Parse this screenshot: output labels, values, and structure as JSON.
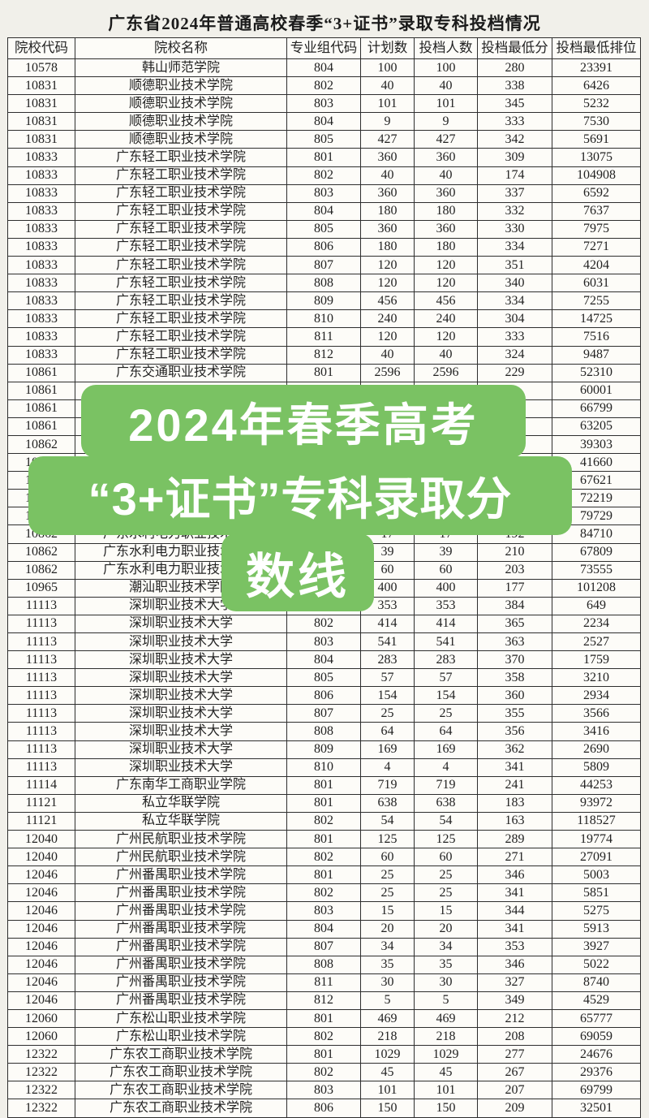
{
  "page": {
    "title": "广东省2024年普通高校春季“3+证书”录取专科投档情况"
  },
  "table": {
    "headers": [
      "院校代码",
      "院校名称",
      "专业组代码",
      "计划数",
      "投档人数",
      "投档最低分",
      "投档最低排位"
    ],
    "rows": [
      [
        "10578",
        "韩山师范学院",
        "804",
        "100",
        "100",
        "280",
        "23391"
      ],
      [
        "10831",
        "顺德职业技术学院",
        "802",
        "40",
        "40",
        "338",
        "6426"
      ],
      [
        "10831",
        "顺德职业技术学院",
        "803",
        "101",
        "101",
        "345",
        "5232"
      ],
      [
        "10831",
        "顺德职业技术学院",
        "804",
        "9",
        "9",
        "333",
        "7530"
      ],
      [
        "10831",
        "顺德职业技术学院",
        "805",
        "427",
        "427",
        "342",
        "5691"
      ],
      [
        "10833",
        "广东轻工职业技术学院",
        "801",
        "360",
        "360",
        "309",
        "13075"
      ],
      [
        "10833",
        "广东轻工职业技术学院",
        "802",
        "40",
        "40",
        "174",
        "104908"
      ],
      [
        "10833",
        "广东轻工职业技术学院",
        "803",
        "360",
        "360",
        "337",
        "6592"
      ],
      [
        "10833",
        "广东轻工职业技术学院",
        "804",
        "180",
        "180",
        "332",
        "7637"
      ],
      [
        "10833",
        "广东轻工职业技术学院",
        "805",
        "360",
        "360",
        "330",
        "7975"
      ],
      [
        "10833",
        "广东轻工职业技术学院",
        "806",
        "180",
        "180",
        "334",
        "7271"
      ],
      [
        "10833",
        "广东轻工职业技术学院",
        "807",
        "120",
        "120",
        "351",
        "4204"
      ],
      [
        "10833",
        "广东轻工职业技术学院",
        "808",
        "120",
        "120",
        "340",
        "6031"
      ],
      [
        "10833",
        "广东轻工职业技术学院",
        "809",
        "456",
        "456",
        "334",
        "7255"
      ],
      [
        "10833",
        "广东轻工职业技术学院",
        "810",
        "240",
        "240",
        "304",
        "14725"
      ],
      [
        "10833",
        "广东轻工职业技术学院",
        "811",
        "120",
        "120",
        "333",
        "7516"
      ],
      [
        "10833",
        "广东轻工职业技术学院",
        "812",
        "40",
        "40",
        "324",
        "9487"
      ],
      [
        "10861",
        "广东交通职业技术学院",
        "801",
        "2596",
        "2596",
        "229",
        "52310"
      ],
      [
        "10861",
        "",
        "",
        "",
        "",
        "",
        "60001"
      ],
      [
        "10861",
        "",
        "",
        "",
        "",
        "",
        "66799"
      ],
      [
        "10861",
        "",
        "",
        "",
        "",
        "",
        "63205"
      ],
      [
        "10862",
        "",
        "",
        "",
        "",
        "",
        "39303"
      ],
      [
        "10862",
        "",
        "",
        "",
        "",
        "",
        "41660"
      ],
      [
        "10862",
        "",
        "",
        "",
        "",
        "",
        "67621"
      ],
      [
        "10862",
        "",
        "",
        "",
        "",
        "",
        "72219"
      ],
      [
        "10862",
        "",
        "",
        "",
        "",
        "",
        "79729"
      ],
      [
        "10862",
        "广东水利电力职业技术学院",
        "",
        "17",
        "17",
        "192",
        "84710"
      ],
      [
        "10862",
        "广东水利电力职业技术学院",
        "",
        "39",
        "39",
        "210",
        "67809"
      ],
      [
        "10862",
        "广东水利电力职业技术学院",
        "",
        "60",
        "60",
        "203",
        "73555"
      ],
      [
        "10965",
        "潮汕职业技术学院",
        "",
        "400",
        "400",
        "177",
        "101208"
      ],
      [
        "11113",
        "深圳职业技术大学",
        "",
        "353",
        "353",
        "384",
        "649"
      ],
      [
        "11113",
        "深圳职业技术大学",
        "802",
        "414",
        "414",
        "365",
        "2234"
      ],
      [
        "11113",
        "深圳职业技术大学",
        "803",
        "541",
        "541",
        "363",
        "2527"
      ],
      [
        "11113",
        "深圳职业技术大学",
        "804",
        "283",
        "283",
        "370",
        "1759"
      ],
      [
        "11113",
        "深圳职业技术大学",
        "805",
        "57",
        "57",
        "358",
        "3210"
      ],
      [
        "11113",
        "深圳职业技术大学",
        "806",
        "154",
        "154",
        "360",
        "2934"
      ],
      [
        "11113",
        "深圳职业技术大学",
        "807",
        "25",
        "25",
        "355",
        "3566"
      ],
      [
        "11113",
        "深圳职业技术大学",
        "808",
        "64",
        "64",
        "356",
        "3416"
      ],
      [
        "11113",
        "深圳职业技术大学",
        "809",
        "169",
        "169",
        "362",
        "2690"
      ],
      [
        "11113",
        "深圳职业技术大学",
        "810",
        "4",
        "4",
        "341",
        "5809"
      ],
      [
        "11114",
        "广东南华工商职业学院",
        "801",
        "719",
        "719",
        "241",
        "44253"
      ],
      [
        "11121",
        "私立华联学院",
        "801",
        "638",
        "638",
        "183",
        "93972"
      ],
      [
        "11121",
        "私立华联学院",
        "802",
        "54",
        "54",
        "163",
        "118527"
      ],
      [
        "12040",
        "广州民航职业技术学院",
        "801",
        "125",
        "125",
        "289",
        "19774"
      ],
      [
        "12040",
        "广州民航职业技术学院",
        "802",
        "60",
        "60",
        "271",
        "27091"
      ],
      [
        "12046",
        "广州番禺职业技术学院",
        "801",
        "25",
        "25",
        "346",
        "5003"
      ],
      [
        "12046",
        "广州番禺职业技术学院",
        "802",
        "25",
        "25",
        "341",
        "5851"
      ],
      [
        "12046",
        "广州番禺职业技术学院",
        "803",
        "15",
        "15",
        "344",
        "5275"
      ],
      [
        "12046",
        "广州番禺职业技术学院",
        "804",
        "20",
        "20",
        "341",
        "5913"
      ],
      [
        "12046",
        "广州番禺职业技术学院",
        "807",
        "34",
        "34",
        "353",
        "3927"
      ],
      [
        "12046",
        "广州番禺职业技术学院",
        "808",
        "35",
        "35",
        "346",
        "5022"
      ],
      [
        "12046",
        "广州番禺职业技术学院",
        "811",
        "30",
        "30",
        "327",
        "8740"
      ],
      [
        "12046",
        "广州番禺职业技术学院",
        "812",
        "5",
        "5",
        "349",
        "4529"
      ],
      [
        "12060",
        "广东松山职业技术学院",
        "801",
        "469",
        "469",
        "212",
        "65777"
      ],
      [
        "12060",
        "广东松山职业技术学院",
        "802",
        "218",
        "218",
        "208",
        "69059"
      ],
      [
        "12322",
        "广东农工商职业技术学院",
        "801",
        "1029",
        "1029",
        "277",
        "24676"
      ],
      [
        "12322",
        "广东农工商职业技术学院",
        "802",
        "45",
        "45",
        "267",
        "29376"
      ],
      [
        "12322",
        "广东农工商职业技术学院",
        "803",
        "101",
        "101",
        "207",
        "69799"
      ],
      [
        "12322",
        "广东农工商职业技术学院",
        "806",
        "150",
        "150",
        "209",
        "32501"
      ]
    ]
  },
  "overlay": {
    "lines": [
      "2024年春季高考",
      "“3+证书”专科录取分",
      "数线"
    ],
    "background_color": "#7ac263",
    "text_color": "#ffffff"
  }
}
